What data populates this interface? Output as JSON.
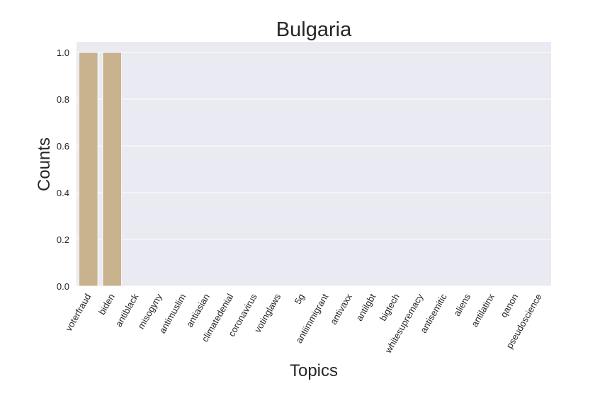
{
  "chart_data": {
    "type": "bar",
    "title": "Bulgaria",
    "xlabel": "Topics",
    "ylabel": "Counts",
    "categories": [
      "voterfraud",
      "biden",
      "antiblack",
      "misogyny",
      "antimuslim",
      "antiasian",
      "climatedenial",
      "coronavirus",
      "votinglaws",
      "5g",
      "antiimmigrant",
      "antivaxx",
      "antilgbt",
      "bigtech",
      "whitesupremacy",
      "antisemitic",
      "aliens",
      "antilatinx",
      "qanon",
      "pseudoscience"
    ],
    "values": [
      1,
      1,
      0,
      0,
      0,
      0,
      0,
      0,
      0,
      0,
      0,
      0,
      0,
      0,
      0,
      0,
      0,
      0,
      0,
      0
    ],
    "ylim": [
      0,
      1.0
    ],
    "yticks": [
      "0.0",
      "0.2",
      "0.4",
      "0.6",
      "0.8",
      "1.0"
    ],
    "grid": true,
    "colors": {
      "background": "#eaeaf2",
      "bar": "#c9b28e",
      "grid": "#ffffff",
      "text": "#262626"
    }
  }
}
